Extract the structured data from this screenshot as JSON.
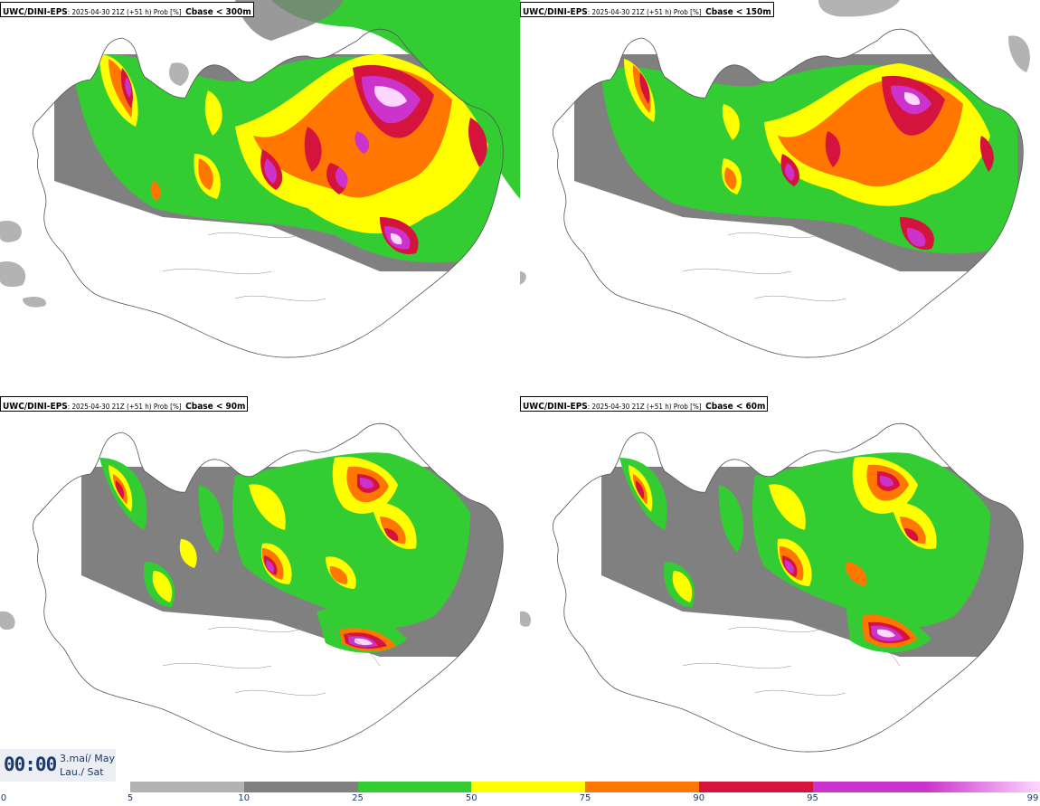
{
  "panels": [
    {
      "model": "UWC/DINI-EPS",
      "run": ": 2025-04-30 21Z (+51 h) Prob [%]",
      "variable": "Cbase < 300m"
    },
    {
      "model": "UWC/DINI-EPS",
      "run": ": 2025-04-30 21Z (+51 h) Prob [%]",
      "variable": "Cbase < 150m"
    },
    {
      "model": "UWC/DINI-EPS",
      "run": ": 2025-04-30 21Z (+51 h) Prob [%]",
      "variable": "Cbase < 90m"
    },
    {
      "model": "UWC/DINI-EPS",
      "run": ": 2025-04-30 21Z (+51 h) Prob [%]",
      "variable": "Cbase < 60m"
    }
  ],
  "valid_time": {
    "time": "00:00",
    "date_line1": "3.maí/ May",
    "date_line2": "Lau./ Sat"
  },
  "legend": {
    "ticks": [
      "0",
      "5",
      "10",
      "25",
      "50",
      "75",
      "90",
      "95",
      "99"
    ],
    "colors": [
      "#b3b3b3",
      "#808080",
      "#33cc33",
      "#ffff00",
      "#ff7700",
      "#d4143c",
      "#cc33cc",
      "#ffd6ff"
    ]
  }
}
